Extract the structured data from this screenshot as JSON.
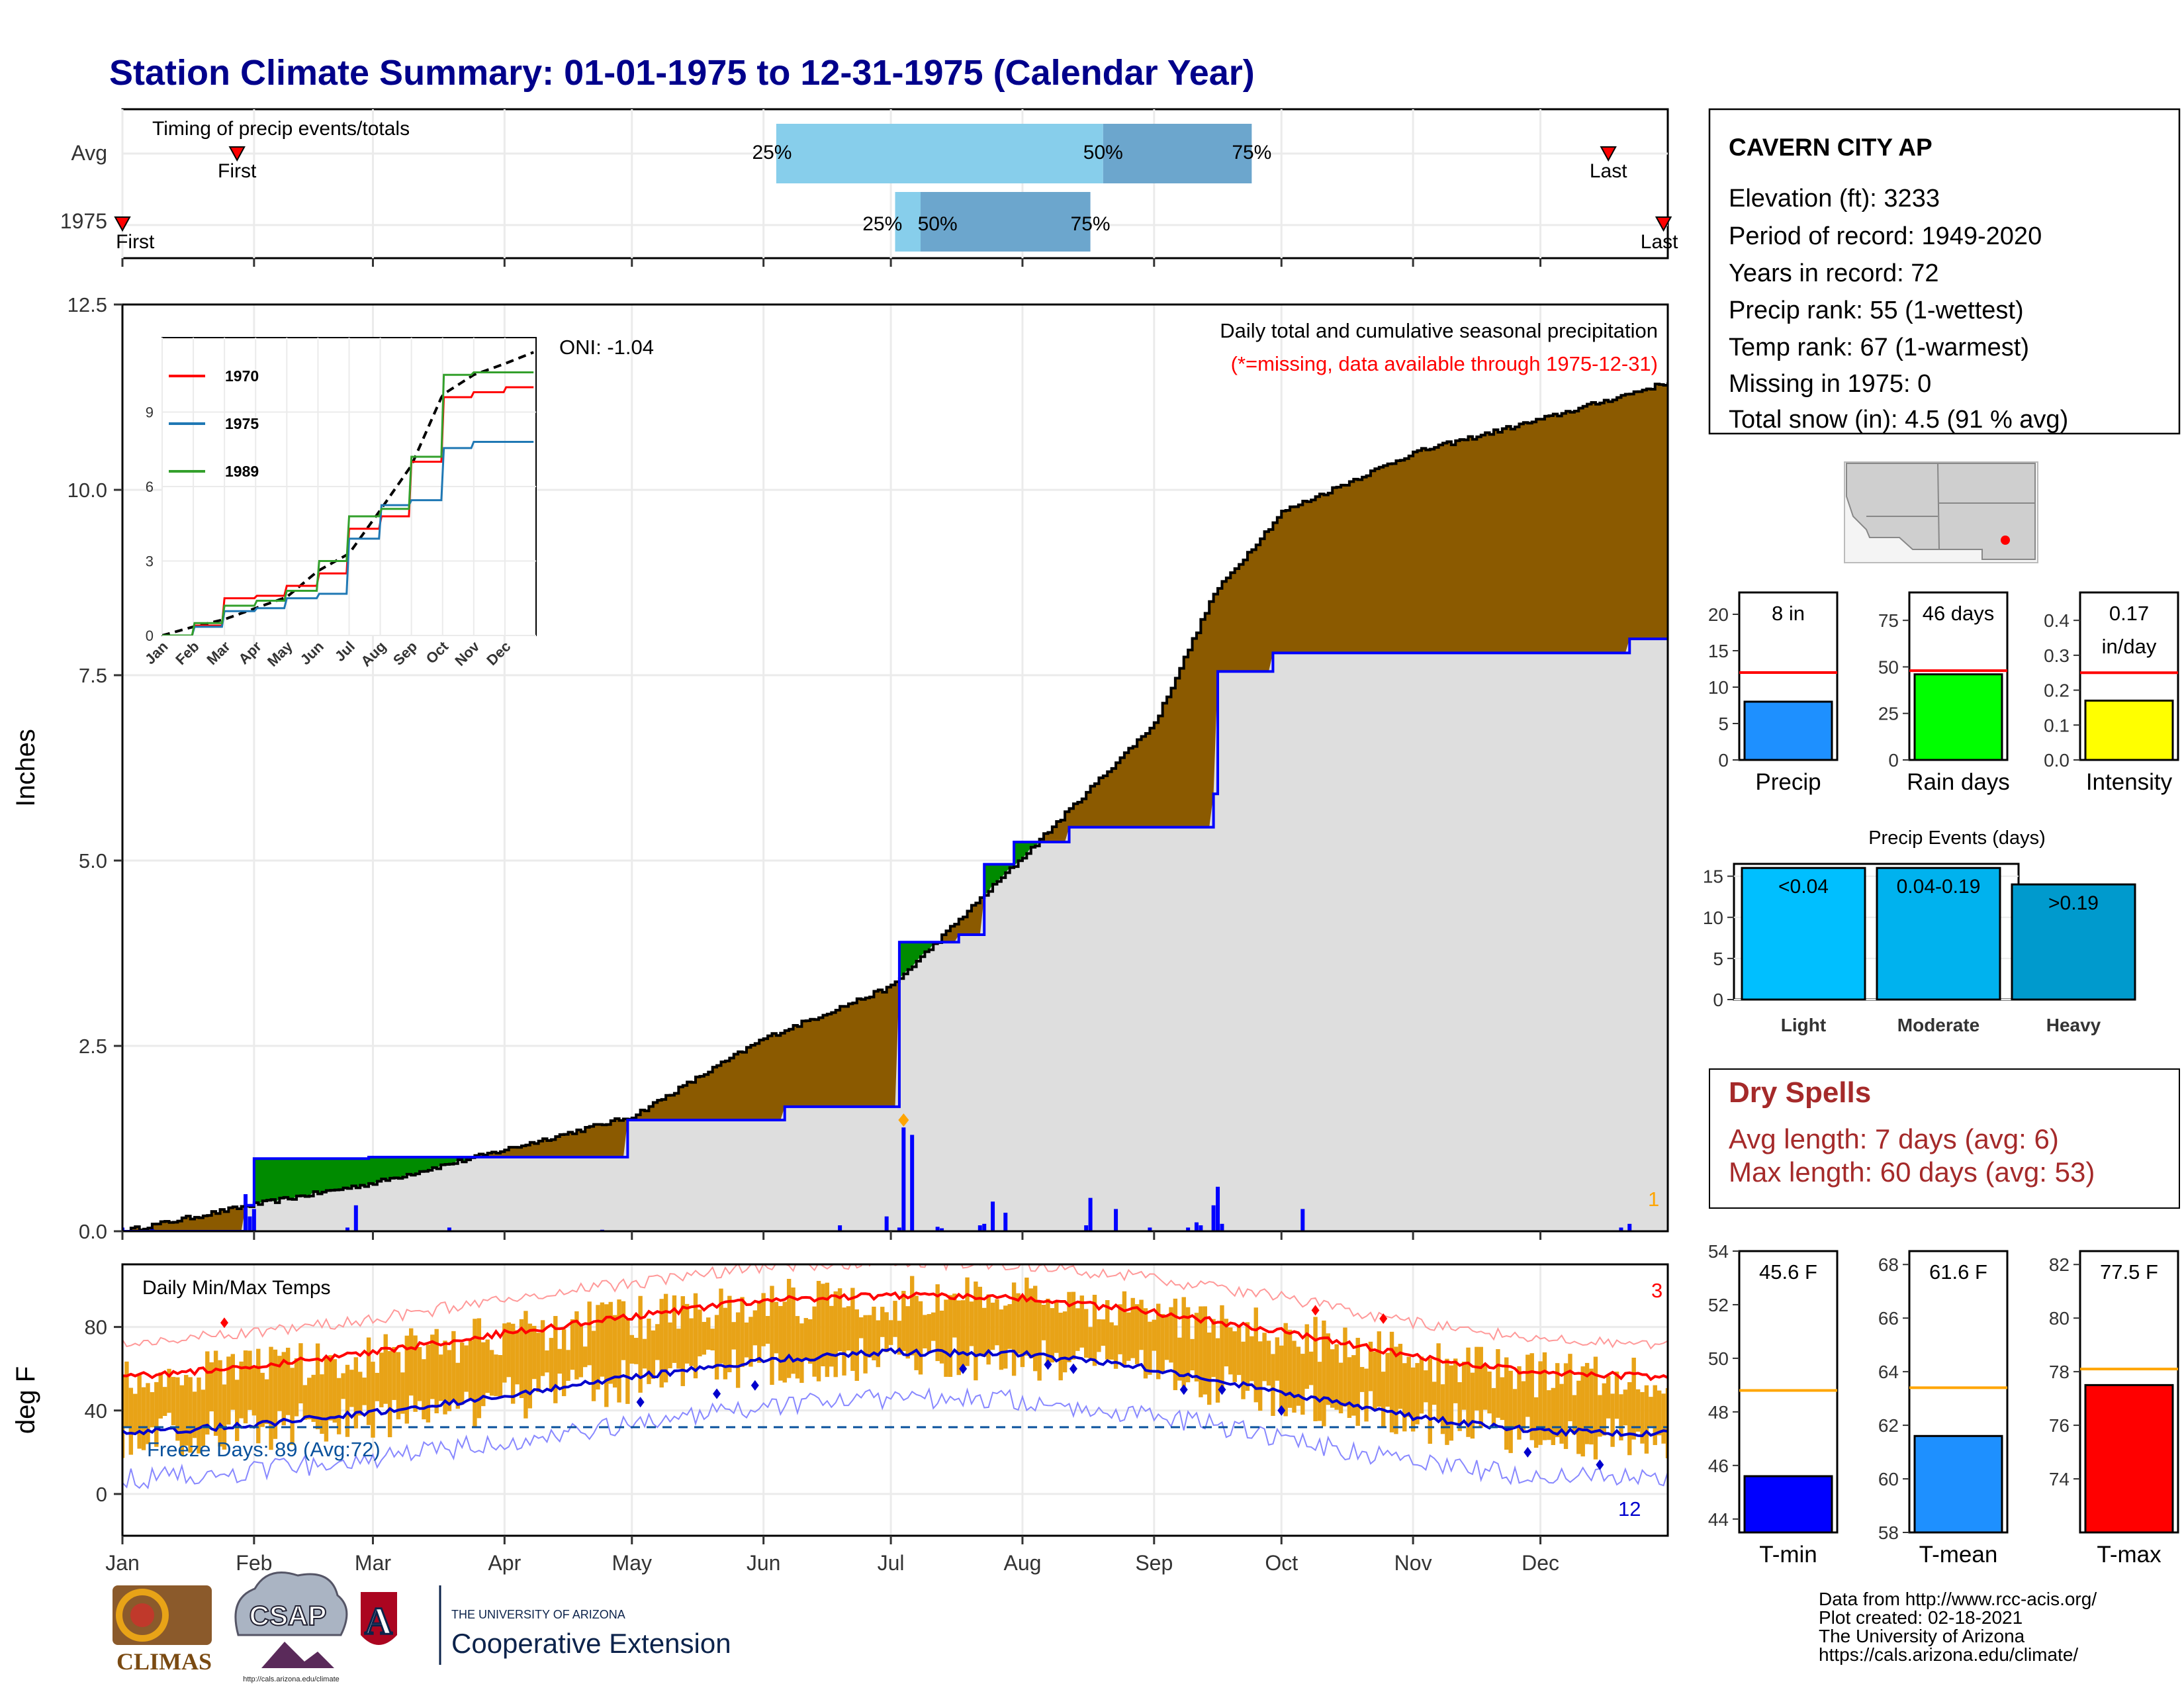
{
  "title": "Station Climate Summary: 01-01-1975 to 12-31-1975 (Calendar Year)",
  "colors": {
    "title": "#00008b",
    "avg_fill": "#dedede",
    "above_avg": "#8b5a00",
    "below_avg": "#008b00",
    "cumulative_line": "#0000ff",
    "daily_bar": "#0000ff",
    "q_light": "#87ceeb",
    "q_dark": "#6ca6cd",
    "temp_bar": "#e8a317",
    "normal_max": "#ff0000",
    "normal_min": "#0000cd",
    "dry_spells": "#a52a2a",
    "precip_bar": "#1e90ff",
    "raindays_bar": "#00ff00",
    "intensity_bar": "#ffff00",
    "tmin_bar": "#0000ff",
    "tmean_bar": "#1e90ff",
    "tmax_bar": "#ff0000",
    "light_bar": "#00bfff",
    "moderate_bar": "#00b2ee",
    "heavy_bar": "#009acd"
  },
  "timing": {
    "label": "Timing of precip events/totals",
    "rows": [
      "Avg",
      "1975"
    ],
    "avg": {
      "first": "First",
      "last": "Last",
      "p25_label": "25%",
      "p50_label": "50%",
      "p75_label": "75%",
      "first_doy": 28,
      "last_doy": 351,
      "p25_doy": 155,
      "p50_doy": 232,
      "p75_doy": 267
    },
    "y1975": {
      "first": "First",
      "last": "Last",
      "p25_label": "25%",
      "p50_label": "50%",
      "p75_label": "75%",
      "first_doy": 1,
      "last_doy": 365,
      "p25_doy": 183,
      "p50_doy": 189,
      "p75_doy": 229
    }
  },
  "precip": {
    "ylabel": "Inches",
    "legend_title": "Daily total and cumulative seasonal precipitation",
    "missing_note": "(*=missing, data available through 1975-12-31)",
    "oni": "ONI: -1.04",
    "missing_count": "1",
    "yticks": [
      "0.0",
      "2.5",
      "5.0",
      "7.5",
      "10.0",
      "12.5"
    ]
  },
  "inset": {
    "legend": [
      "1970",
      "1975",
      "1989"
    ],
    "yticks": [
      "0",
      "3",
      "6",
      "9"
    ],
    "months": [
      "Jan",
      "Feb",
      "Mar",
      "Apr",
      "May",
      "Jun",
      "Jul",
      "Aug",
      "Sep",
      "Oct",
      "Nov",
      "Dec"
    ]
  },
  "temps": {
    "ylabel": "deg F",
    "label": "Daily Min/Max Temps",
    "freeze_label": "Freeze Days: 89 (Avg:72)",
    "record_high_count": "3",
    "record_low_count": "12",
    "yticks": [
      "0",
      "40",
      "80"
    ]
  },
  "months": [
    "Jan",
    "Feb",
    "Mar",
    "Apr",
    "May",
    "Jun",
    "Jul",
    "Aug",
    "Sep",
    "Oct",
    "Nov",
    "Dec"
  ],
  "station": {
    "name": "CAVERN CITY AP",
    "elevation": "Elevation (ft): 3233",
    "period": "Period of record: 1949-2020",
    "years": "Years in record: 72",
    "precip_rank": "Precip rank: 55 (1-wettest)",
    "temp_rank": "Temp rank: 67 (1-warmest)",
    "missing": "Missing in 1975: 0",
    "snow": "Total snow (in): 4.5 (91 % avg)"
  },
  "dry_spells": {
    "title": "Dry Spells",
    "avg": "Avg length: 7 days (avg: 6)",
    "max": "Max length: 60 days (avg: 53)"
  },
  "footer": {
    "line1": "Data from http://www.rcc-acis.org/",
    "line2": "Plot created: 02-18-2021",
    "line3": "The University of Arizona",
    "line4": "https://cals.arizona.edu/climate/"
  },
  "logos": {
    "climas": "CLIMAS",
    "csap": "CSAP",
    "csap_url": "http://cals.arizona.edu/climate",
    "ua_small": "THE UNIVERSITY OF ARIZONA",
    "ua_big": "Cooperative Extension",
    "ua_letter": "A"
  },
  "chart_data": [
    {
      "type": "area",
      "title": "Daily total and cumulative seasonal precipitation",
      "xlabel": "",
      "ylabel": "Inches",
      "ylim": [
        0,
        12.5
      ],
      "x_unit": "day of year 1975",
      "series": [
        {
          "values_kind": "average cumulative",
          "x": [
            1,
            31,
            60,
            91,
            121,
            152,
            182,
            213,
            244,
            258,
            274,
            305,
            335,
            365
          ],
          "values": [
            0,
            0.35,
            0.65,
            1.1,
            1.55,
            2.6,
            3.3,
            5.05,
            6.85,
            8.6,
            9.7,
            10.5,
            10.95,
            11.45
          ]
        },
        {
          "name": "1975",
          "x": [
            1,
            30,
            32,
            57,
            59,
            120,
            121,
            157,
            182,
            184,
            198,
            204,
            211,
            223,
            224,
            244,
            258,
            259,
            264,
            272,
            355,
            356,
            365
          ],
          "values": [
            0,
            0.35,
            0.98,
            0.98,
            1.0,
            1.5,
            1.5,
            1.68,
            1.68,
            3.9,
            4.0,
            4.95,
            5.25,
            5.25,
            5.45,
            5.45,
            5.9,
            7.55,
            7.55,
            7.8,
            7.8,
            7.99,
            7.99
          ]
        }
      ],
      "daily_bars": {
        "x": [
          1,
          8,
          30,
          31,
          32,
          54,
          56,
          78,
          114,
          170,
          181,
          184,
          185,
          187,
          193,
          194,
          203,
          204,
          206,
          209,
          228,
          229,
          235,
          243,
          252,
          254,
          255,
          258,
          259,
          260,
          279,
          354,
          356
        ],
        "values": [
          0.05,
          0.03,
          0.5,
          0.2,
          0.3,
          0.05,
          0.35,
          0.05,
          0.02,
          0.08,
          0.2,
          0.05,
          1.4,
          1.3,
          0.06,
          0.04,
          0.08,
          0.1,
          0.4,
          0.25,
          0.08,
          0.45,
          0.3,
          0.05,
          0.05,
          0.12,
          0.08,
          0.35,
          0.6,
          0.1,
          0.3,
          0.05,
          0.1
        ]
      }
    },
    {
      "type": "line",
      "title": "",
      "ylim": [
        0,
        12
      ],
      "legend": [
        "1970",
        "1975",
        "1989"
      ],
      "series": [
        {
          "name": "average",
          "x": [
            0,
            1,
            2,
            3,
            4,
            5,
            6,
            7,
            8,
            9,
            10,
            11,
            12
          ],
          "values": [
            0,
            0.35,
            0.65,
            1.1,
            1.55,
            2.6,
            3.3,
            5.05,
            6.85,
            9.7,
            10.5,
            10.95,
            11.45
          ]
        },
        {
          "name": "1970",
          "x": [
            0,
            1,
            2,
            3,
            4,
            5,
            6,
            7,
            8,
            9,
            10,
            11,
            12
          ],
          "values": [
            0,
            0.4,
            1.5,
            1.6,
            2.0,
            2.5,
            4.3,
            4.8,
            7.0,
            9.6,
            9.8,
            10.0,
            10.1
          ]
        },
        {
          "name": "1975",
          "x": [
            0,
            1,
            2,
            3,
            4,
            5,
            6,
            7,
            8,
            9,
            10,
            11,
            12
          ],
          "values": [
            0,
            0.35,
            0.98,
            1.1,
            1.5,
            1.68,
            3.9,
            5.25,
            5.45,
            7.55,
            7.8,
            7.8,
            7.99
          ]
        },
        {
          "name": "1989",
          "x": [
            0,
            1,
            2,
            3,
            4,
            5,
            6,
            7,
            8,
            9,
            10,
            11,
            12
          ],
          "values": [
            0,
            0.5,
            1.2,
            1.4,
            1.8,
            3.0,
            4.8,
            5.1,
            7.2,
            10.5,
            10.6,
            10.6,
            10.8
          ]
        }
      ]
    },
    {
      "type": "bar",
      "title": "Daily Min/Max Temps",
      "ylabel": "deg F",
      "ylim": [
        -20,
        110
      ],
      "x_unit": "day of year 1975",
      "normal_max": {
        "x": [
          1,
          32,
          60,
          91,
          121,
          152,
          182,
          213,
          244,
          274,
          305,
          335,
          365
        ],
        "values": [
          56,
          61,
          68,
          77,
          85,
          93,
          95,
          94,
          87,
          78,
          66,
          58,
          56
        ]
      },
      "normal_min": {
        "x": [
          1,
          32,
          60,
          91,
          121,
          152,
          182,
          213,
          244,
          274,
          305,
          335,
          365
        ],
        "values": [
          29,
          33,
          39,
          47,
          56,
          64,
          68,
          67,
          60,
          49,
          37,
          30,
          29
        ]
      },
      "freeze_threshold": 32
    },
    {
      "type": "bar",
      "categories": [
        "Precip"
      ],
      "values": [
        8
      ],
      "normal": 12,
      "label": "8 in",
      "ylim": [
        0,
        23
      ]
    },
    {
      "type": "bar",
      "categories": [
        "Rain days"
      ],
      "values": [
        46
      ],
      "normal": 48,
      "label": "46 days",
      "ylim": [
        0,
        90
      ]
    },
    {
      "type": "bar",
      "categories": [
        "Intensity"
      ],
      "values": [
        0.17
      ],
      "normal": 0.25,
      "label": "0.17 in/day",
      "ylim": [
        0,
        0.48
      ]
    },
    {
      "type": "bar",
      "title": "Precip Events (days)",
      "categories": [
        "Light",
        "Moderate",
        "Heavy"
      ],
      "range_labels": [
        "<0.04",
        "0.04-0.19",
        ">0.19"
      ],
      "values": [
        16,
        16,
        14
      ],
      "ylim": [
        0,
        16.5
      ]
    },
    {
      "type": "bar",
      "categories": [
        "T-min"
      ],
      "values": [
        45.6
      ],
      "normal": 48.8,
      "label": "45.6 F",
      "ylim": [
        43.5,
        54
      ]
    },
    {
      "type": "bar",
      "categories": [
        "T-mean"
      ],
      "values": [
        61.6
      ],
      "normal": 63.4,
      "label": "61.6 F",
      "ylim": [
        58,
        68.5
      ]
    },
    {
      "type": "bar",
      "categories": [
        "T-max"
      ],
      "values": [
        77.5
      ],
      "normal": 78.1,
      "label": "77.5 F",
      "ylim": [
        72,
        82.5
      ]
    }
  ]
}
